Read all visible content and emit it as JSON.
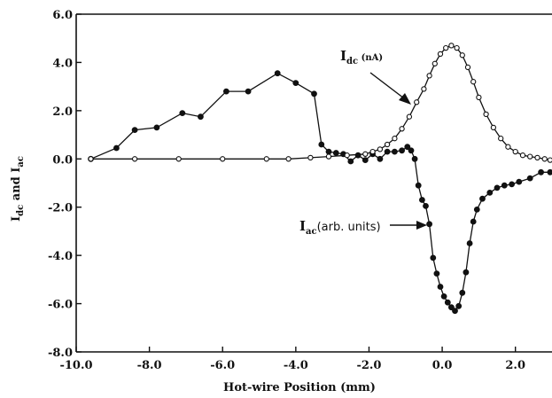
{
  "chart_data": {
    "type": "line",
    "title": "",
    "xlabel": "Hot-wire Position (mm)",
    "ylabel": {
      "main1": "I",
      "sub1": "dc",
      "middle": " and I",
      "sub2": "ac"
    },
    "xlim": [
      -10.0,
      3.0
    ],
    "ylim": [
      -8.0,
      6.0
    ],
    "x_ticks": [
      -10.0,
      -8.0,
      -6.0,
      -4.0,
      -2.0,
      0.0,
      2.0
    ],
    "x_tick_labels": [
      "-10.0",
      "-8.0",
      "-6.0",
      "-4.0",
      "-2.0",
      "0.0",
      "2.0"
    ],
    "y_ticks": [
      6.0,
      4.0,
      2.0,
      0.0,
      -2.0,
      -4.0,
      -6.0,
      -8.0
    ],
    "y_tick_labels": [
      "6.0",
      "4.0",
      "2.0",
      "0.0",
      "-2.0",
      "-4.0",
      "-6.0",
      "-8.0"
    ],
    "grid": false,
    "legend": "none",
    "annotations": [
      {
        "id": "idc",
        "main": "I",
        "sub": "dc",
        "unit": " (nA)"
      },
      {
        "id": "iac",
        "main": "I",
        "sub": "ac",
        "unit": "(arb.  units)"
      }
    ],
    "series": [
      {
        "id": "iac",
        "marker": "filled-circle",
        "x": [
          -9.6,
          -8.9,
          -8.4,
          -7.8,
          -7.1,
          -6.6,
          -5.9,
          -5.3,
          -4.5,
          -4.0,
          -3.5,
          -3.3,
          -3.1,
          -2.9,
          -2.7,
          -2.5,
          -2.3,
          -2.1,
          -1.9,
          -1.7,
          -1.5,
          -1.3,
          -1.1,
          -0.95,
          -0.85,
          -0.75,
          -0.65,
          -0.55,
          -0.45,
          -0.35,
          -0.25,
          -0.15,
          -0.05,
          0.05,
          0.15,
          0.25,
          0.35,
          0.45,
          0.55,
          0.65,
          0.75,
          0.85,
          0.95,
          1.1,
          1.3,
          1.5,
          1.7,
          1.9,
          2.1,
          2.4,
          2.7,
          2.95
        ],
        "y": [
          0.0,
          0.45,
          1.2,
          1.3,
          1.9,
          1.75,
          2.8,
          2.8,
          3.55,
          3.15,
          2.7,
          0.6,
          0.3,
          0.25,
          0.2,
          -0.1,
          0.15,
          -0.05,
          0.2,
          0.0,
          0.3,
          0.3,
          0.35,
          0.5,
          0.35,
          0.0,
          -1.1,
          -1.7,
          -1.95,
          -2.7,
          -4.1,
          -4.75,
          -5.3,
          -5.7,
          -5.95,
          -6.15,
          -6.3,
          -6.1,
          -5.55,
          -4.7,
          -3.5,
          -2.6,
          -2.1,
          -1.65,
          -1.4,
          -1.2,
          -1.1,
          -1.05,
          -0.95,
          -0.8,
          -0.55,
          -0.55
        ]
      },
      {
        "id": "idc",
        "marker": "open-circle",
        "x": [
          -9.6,
          -8.4,
          -7.2,
          -6.0,
          -4.8,
          -4.2,
          -3.6,
          -3.1,
          -2.6,
          -2.1,
          -1.9,
          -1.7,
          -1.5,
          -1.3,
          -1.1,
          -0.9,
          -0.7,
          -0.5,
          -0.35,
          -0.2,
          -0.05,
          0.1,
          0.25,
          0.4,
          0.55,
          0.7,
          0.85,
          1.0,
          1.2,
          1.4,
          1.6,
          1.8,
          2.0,
          2.2,
          2.4,
          2.6,
          2.8,
          2.95
        ],
        "y": [
          0.0,
          0.0,
          0.0,
          0.0,
          0.0,
          0.0,
          0.05,
          0.1,
          0.15,
          0.2,
          0.3,
          0.4,
          0.6,
          0.85,
          1.25,
          1.75,
          2.35,
          2.9,
          3.45,
          3.95,
          4.35,
          4.6,
          4.7,
          4.6,
          4.3,
          3.8,
          3.2,
          2.55,
          1.85,
          1.3,
          0.85,
          0.5,
          0.3,
          0.15,
          0.1,
          0.05,
          0.0,
          -0.05
        ]
      }
    ]
  }
}
